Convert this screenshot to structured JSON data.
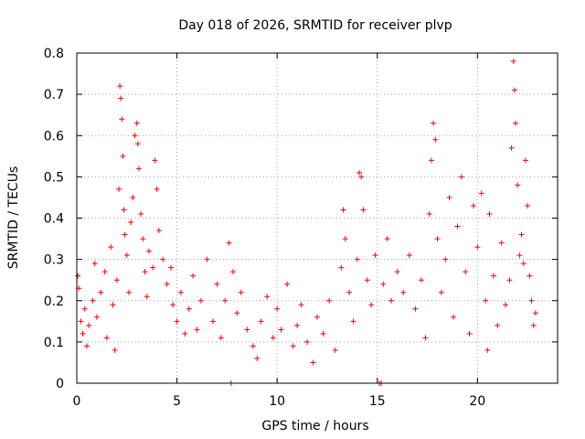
{
  "chart_data": {
    "type": "scatter",
    "title": "Day 018 of 2026, SRMTID for receiver plvp",
    "xlabel": "GPS time / hours",
    "ylabel": "SRMTID / TECUs",
    "xlim": [
      0,
      24
    ],
    "ylim": [
      0,
      0.8
    ],
    "x_ticks": [
      0,
      5,
      10,
      15,
      20
    ],
    "x_tick_labels": [
      "0",
      "5",
      "10",
      "15",
      "20"
    ],
    "y_ticks": [
      0,
      0.1,
      0.2,
      0.3,
      0.4,
      0.5,
      0.6,
      0.7,
      0.8
    ],
    "y_tick_labels": [
      "0",
      "0.1",
      "0.2",
      "0.3",
      "0.4",
      "0.5",
      "0.6",
      "0.7",
      "0.8"
    ],
    "grid": true,
    "marker": "+",
    "series_color": "#ff0000",
    "series": [
      {
        "name": "SRMTID",
        "envelope_note": "dense scatter; values summarized as samples",
        "points": [
          [
            0.05,
            0.26
          ],
          [
            0.1,
            0.23
          ],
          [
            0.2,
            0.15
          ],
          [
            0.3,
            0.12
          ],
          [
            0.4,
            0.18
          ],
          [
            0.5,
            0.09
          ],
          [
            0.6,
            0.14
          ],
          [
            0.8,
            0.2
          ],
          [
            0.9,
            0.29
          ],
          [
            1.0,
            0.16
          ],
          [
            1.2,
            0.22
          ],
          [
            1.4,
            0.27
          ],
          [
            1.5,
            0.11
          ],
          [
            1.7,
            0.33
          ],
          [
            1.8,
            0.19
          ],
          [
            1.9,
            0.08
          ],
          [
            2.0,
            0.25
          ],
          [
            2.1,
            0.47
          ],
          [
            2.15,
            0.72
          ],
          [
            2.2,
            0.69
          ],
          [
            2.25,
            0.64
          ],
          [
            2.3,
            0.55
          ],
          [
            2.35,
            0.42
          ],
          [
            2.4,
            0.36
          ],
          [
            2.5,
            0.31
          ],
          [
            2.6,
            0.22
          ],
          [
            2.7,
            0.39
          ],
          [
            2.8,
            0.45
          ],
          [
            2.9,
            0.6
          ],
          [
            3.0,
            0.63
          ],
          [
            3.05,
            0.58
          ],
          [
            3.1,
            0.52
          ],
          [
            3.2,
            0.41
          ],
          [
            3.3,
            0.35
          ],
          [
            3.4,
            0.27
          ],
          [
            3.5,
            0.21
          ],
          [
            3.6,
            0.32
          ],
          [
            3.8,
            0.28
          ],
          [
            3.9,
            0.54
          ],
          [
            4.0,
            0.47
          ],
          [
            4.1,
            0.37
          ],
          [
            4.3,
            0.3
          ],
          [
            4.5,
            0.24
          ],
          [
            4.7,
            0.28
          ],
          [
            4.8,
            0.19
          ],
          [
            5.0,
            0.15
          ],
          [
            5.2,
            0.22
          ],
          [
            5.4,
            0.12
          ],
          [
            5.6,
            0.18
          ],
          [
            5.8,
            0.26
          ],
          [
            6.0,
            0.13
          ],
          [
            6.2,
            0.2
          ],
          [
            6.5,
            0.3
          ],
          [
            6.8,
            0.15
          ],
          [
            7.0,
            0.24
          ],
          [
            7.2,
            0.11
          ],
          [
            7.4,
            0.2
          ],
          [
            7.6,
            0.34
          ],
          [
            7.7,
            0.0
          ],
          [
            7.8,
            0.27
          ],
          [
            8.0,
            0.17
          ],
          [
            8.2,
            0.22
          ],
          [
            8.5,
            0.13
          ],
          [
            8.8,
            0.09
          ],
          [
            9.0,
            0.06
          ],
          [
            9.2,
            0.15
          ],
          [
            9.5,
            0.21
          ],
          [
            9.8,
            0.11
          ],
          [
            10.0,
            0.18
          ],
          [
            10.2,
            0.13
          ],
          [
            10.5,
            0.24
          ],
          [
            10.8,
            0.09
          ],
          [
            11.0,
            0.14
          ],
          [
            11.2,
            0.19
          ],
          [
            11.5,
            0.1
          ],
          [
            11.8,
            0.05
          ],
          [
            12.0,
            0.16
          ],
          [
            12.3,
            0.12
          ],
          [
            12.6,
            0.2
          ],
          [
            12.9,
            0.08
          ],
          [
            13.2,
            0.28
          ],
          [
            13.3,
            0.42
          ],
          [
            13.4,
            0.35
          ],
          [
            13.6,
            0.22
          ],
          [
            13.8,
            0.15
          ],
          [
            14.0,
            0.3
          ],
          [
            14.1,
            0.51
          ],
          [
            14.2,
            0.5
          ],
          [
            14.3,
            0.42
          ],
          [
            14.5,
            0.25
          ],
          [
            14.7,
            0.19
          ],
          [
            14.9,
            0.31
          ],
          [
            15.1,
            0.0
          ],
          [
            15.2,
            0.0
          ],
          [
            15.3,
            0.24
          ],
          [
            15.5,
            0.35
          ],
          [
            15.7,
            0.2
          ],
          [
            16.0,
            0.27
          ],
          [
            16.3,
            0.22
          ],
          [
            16.6,
            0.31
          ],
          [
            16.9,
            0.18
          ],
          [
            17.2,
            0.25
          ],
          [
            17.4,
            0.11
          ],
          [
            17.6,
            0.41
          ],
          [
            17.7,
            0.54
          ],
          [
            17.8,
            0.63
          ],
          [
            17.9,
            0.59
          ],
          [
            18.0,
            0.35
          ],
          [
            18.2,
            0.22
          ],
          [
            18.4,
            0.3
          ],
          [
            18.6,
            0.45
          ],
          [
            18.8,
            0.16
          ],
          [
            19.0,
            0.38
          ],
          [
            19.2,
            0.5
          ],
          [
            19.4,
            0.27
          ],
          [
            19.6,
            0.12
          ],
          [
            19.8,
            0.43
          ],
          [
            20.0,
            0.33
          ],
          [
            20.2,
            0.46
          ],
          [
            20.4,
            0.2
          ],
          [
            20.5,
            0.08
          ],
          [
            20.6,
            0.41
          ],
          [
            20.8,
            0.26
          ],
          [
            21.0,
            0.14
          ],
          [
            21.2,
            0.34
          ],
          [
            21.4,
            0.19
          ],
          [
            21.6,
            0.25
          ],
          [
            21.7,
            0.57
          ],
          [
            21.8,
            0.78
          ],
          [
            21.85,
            0.71
          ],
          [
            21.9,
            0.63
          ],
          [
            22.0,
            0.48
          ],
          [
            22.1,
            0.31
          ],
          [
            22.2,
            0.36
          ],
          [
            22.3,
            0.29
          ],
          [
            22.4,
            0.54
          ],
          [
            22.5,
            0.43
          ],
          [
            22.6,
            0.26
          ],
          [
            22.7,
            0.2
          ],
          [
            22.8,
            0.14
          ],
          [
            22.9,
            0.17
          ]
        ]
      }
    ]
  }
}
